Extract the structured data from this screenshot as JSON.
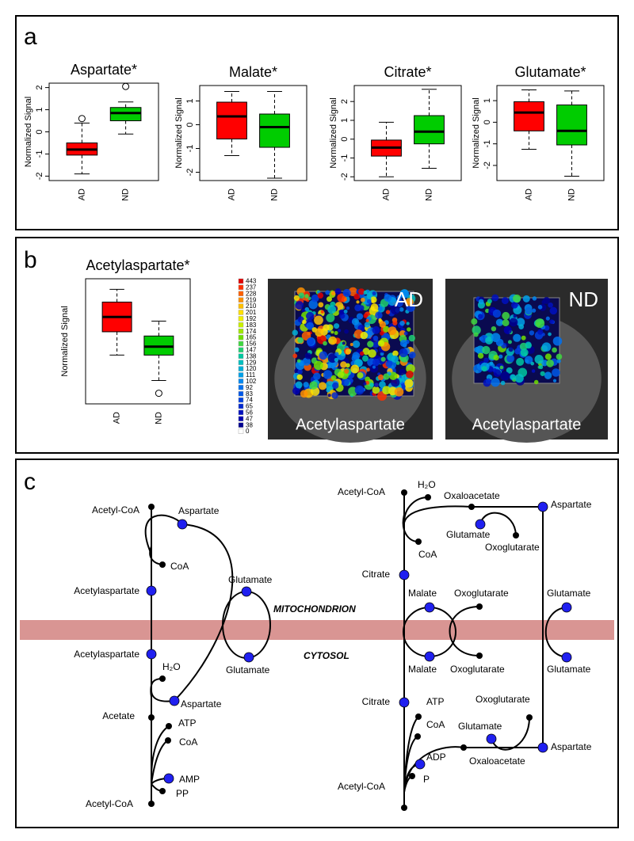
{
  "panel_labels": [
    "a",
    "b",
    "c"
  ],
  "chart_data": [
    {
      "type": "box",
      "title": "Aspartate*",
      "ylabel": "Normalized Signal",
      "categories": [
        "AD",
        "ND"
      ],
      "colors": [
        "#ff0000",
        "#00cc00"
      ],
      "boxes": [
        {
          "whislo": -1.9,
          "q1": -1.05,
          "med": -0.8,
          "q3": -0.5,
          "whishi": 0.4,
          "fliers": [
            0.6
          ]
        },
        {
          "whislo": -0.1,
          "q1": 0.5,
          "med": 0.85,
          "q3": 1.1,
          "whishi": 1.35,
          "fliers": [
            2.05
          ]
        }
      ],
      "ylim": [
        -2.2,
        2.2
      ],
      "yticks": [
        -2,
        -1,
        0,
        1,
        2
      ]
    },
    {
      "type": "box",
      "title": "Malate*",
      "ylabel": "Normalized Signal",
      "categories": [
        "AD",
        "ND"
      ],
      "colors": [
        "#ff0000",
        "#00cc00"
      ],
      "boxes": [
        {
          "whislo": -1.3,
          "q1": -0.6,
          "med": 0.35,
          "q3": 0.95,
          "whishi": 1.4,
          "fliers": []
        },
        {
          "whislo": -2.25,
          "q1": -0.95,
          "med": -0.1,
          "q3": 0.45,
          "whishi": 1.4,
          "fliers": []
        }
      ],
      "ylim": [
        -2.35,
        1.65
      ],
      "yticks": [
        -2,
        -1,
        0,
        1
      ]
    },
    {
      "type": "box",
      "title": "Citrate*",
      "ylabel": "Normalized Signal",
      "categories": [
        "AD",
        "ND"
      ],
      "colors": [
        "#ff0000",
        "#00cc00"
      ],
      "boxes": [
        {
          "whislo": -2.0,
          "q1": -0.9,
          "med": -0.45,
          "q3": -0.05,
          "whishi": 0.9,
          "fliers": []
        },
        {
          "whislo": -1.55,
          "q1": -0.25,
          "med": 0.4,
          "q3": 1.25,
          "whishi": 2.65,
          "fliers": []
        }
      ],
      "ylim": [
        -2.2,
        2.85
      ],
      "yticks": [
        -2,
        -1,
        0,
        1,
        2
      ]
    },
    {
      "type": "box",
      "title": "Glutamate*",
      "ylabel": "Normalized Signal",
      "categories": [
        "AD",
        "ND"
      ],
      "colors": [
        "#ff0000",
        "#00cc00"
      ],
      "boxes": [
        {
          "whislo": -1.25,
          "q1": -0.4,
          "med": 0.45,
          "q3": 0.95,
          "whishi": 1.5,
          "fliers": []
        },
        {
          "whislo": -2.5,
          "q1": -1.05,
          "med": -0.4,
          "q3": 0.8,
          "whishi": 1.45,
          "fliers": []
        }
      ],
      "ylim": [
        -2.7,
        1.7
      ],
      "yticks": [
        -2,
        -1,
        0,
        1
      ]
    },
    {
      "type": "box",
      "title": "Acetylaspartate*",
      "ylabel": "Normalized Signal",
      "categories": [
        "AD",
        "ND"
      ],
      "colors": [
        "#ff0000",
        "#00cc00"
      ],
      "boxes": [
        {
          "whislo": 6.8,
          "q1": 7.9,
          "med": 8.6,
          "q3": 9.3,
          "whishi": 9.9,
          "fliers": []
        },
        {
          "whislo": 5.6,
          "q1": 6.8,
          "med": 7.2,
          "q3": 7.7,
          "whishi": 8.4,
          "fliers": [
            5.0
          ]
        }
      ],
      "ylim": [
        4.5,
        10.4
      ]
    }
  ],
  "heatmap": {
    "colorbar": {
      "ticks": [
        443,
        237,
        228,
        219,
        210,
        201,
        192,
        183,
        174,
        165,
        156,
        147,
        138,
        129,
        120,
        111,
        102,
        92,
        83,
        74,
        65,
        56,
        47,
        38,
        0
      ],
      "colors": [
        "#e00000",
        "#ff3000",
        "#ff6000",
        "#ff9000",
        "#ffc000",
        "#ffe000",
        "#f0f000",
        "#c8f000",
        "#a0e800",
        "#70e000",
        "#40d840",
        "#20d070",
        "#00c8a0",
        "#00c0c0",
        "#00b0d8",
        "#00a0e8",
        "#0088f0",
        "#0070f0",
        "#0058e8",
        "#0040e0",
        "#0028d0",
        "#0010c0",
        "#0000b0",
        "#000090",
        "#ffffff"
      ]
    },
    "images": [
      {
        "group": "AD",
        "metabolite": "Acetylaspartate"
      },
      {
        "group": "ND",
        "metabolite": "Acetylaspartate"
      }
    ]
  },
  "pathway": {
    "compartments": [
      "MITOCHONDRION",
      "CYTOSOL"
    ],
    "labels": [
      "Acetyl-CoA",
      "Aspartate",
      "CoA",
      "Acetylaspartate",
      "Glutamate",
      "Acetylaspartate",
      "Glutamate",
      "H₂O",
      "Aspartate",
      "Acetate",
      "ATP",
      "CoA",
      "AMP",
      "PP",
      "Acetyl-CoA",
      "Acetyl-CoA",
      "H₂O",
      "Oxaloacetate",
      "Aspartate",
      "Glutamate",
      "Oxoglutarate",
      "CoA",
      "Citrate",
      "Malate",
      "Oxoglutarate",
      "Glutamate",
      "Malate",
      "Oxoglutarate",
      "Glutamate",
      "Citrate",
      "ATP",
      "Oxoglutarate",
      "CoA",
      "Glutamate",
      "Aspartate",
      "ADP",
      "Oxaloacetate",
      "P",
      "Acetyl-CoA"
    ]
  }
}
